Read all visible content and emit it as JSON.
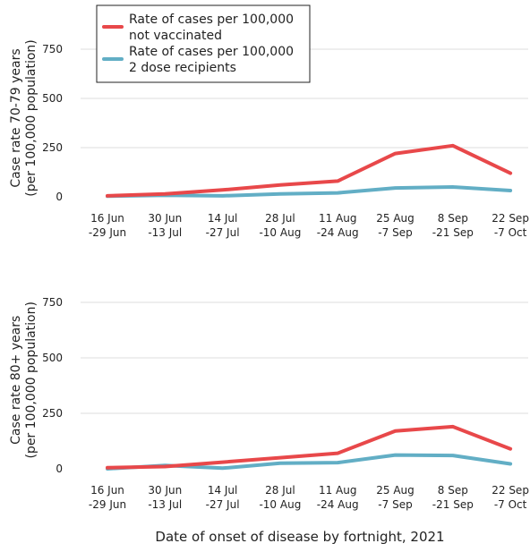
{
  "xlabel": "Date of onset of disease by fortnight, 2021",
  "legend": {
    "series": [
      {
        "label_line1": "Rate of cases per 100,000",
        "label_line2": "not vaccinated",
        "color": "#e8484a"
      },
      {
        "label_line1": "Rate of cases per 100,000",
        "label_line2": "2 dose recipients",
        "color": "#62aec5"
      }
    ]
  },
  "chart_data": [
    {
      "type": "line",
      "categories": [
        [
          "16 Jun",
          "-29 Jun"
        ],
        [
          "30 Jun",
          "-13 Jul"
        ],
        [
          "14 Jul",
          "-27 Jul"
        ],
        [
          "28 Jul",
          "-10 Aug"
        ],
        [
          "11 Aug",
          "-24 Aug"
        ],
        [
          "25 Aug",
          "-7 Sep"
        ],
        [
          "8 Sep",
          "-21 Sep"
        ],
        [
          "22 Sep",
          "-7 Oct"
        ]
      ],
      "ylabel_line1": "Case rate 70-79 years",
      "ylabel_line2": "(per 100,000 population)",
      "ylim": [
        0,
        850
      ],
      "yticks": [
        0,
        250,
        500,
        750
      ],
      "grid": true,
      "series": [
        {
          "name": "Rate of cases per 100,000 not vaccinated",
          "color": "#e8484a",
          "values": [
            5,
            15,
            35,
            60,
            80,
            220,
            260,
            120
          ]
        },
        {
          "name": "Rate of cases per 100,000 2 dose recipients",
          "color": "#62aec5",
          "values": [
            3,
            8,
            5,
            15,
            20,
            45,
            50,
            32
          ]
        }
      ]
    },
    {
      "type": "line",
      "categories": [
        [
          "16 Jun",
          "-29 Jun"
        ],
        [
          "30 Jun",
          "-13 Jul"
        ],
        [
          "14 Jul",
          "-27 Jul"
        ],
        [
          "28 Jul",
          "-10 Aug"
        ],
        [
          "11 Aug",
          "-24 Aug"
        ],
        [
          "25 Aug",
          "-7 Sep"
        ],
        [
          "8 Sep",
          "-21 Sep"
        ],
        [
          "22 Sep",
          "-7 Oct"
        ]
      ],
      "ylabel_line1": "Case rate 80+ years",
      "ylabel_line2": "(per 100,000 population)",
      "ylim": [
        0,
        850
      ],
      "yticks": [
        0,
        250,
        500,
        750
      ],
      "grid": true,
      "series": [
        {
          "name": "Rate of cases per 100,000 not vaccinated",
          "color": "#e8484a",
          "values": [
            5,
            10,
            30,
            50,
            70,
            170,
            190,
            90
          ]
        },
        {
          "name": "Rate of cases per 100,000 2 dose recipients",
          "color": "#62aec5",
          "values": [
            0,
            15,
            3,
            25,
            28,
            62,
            60,
            22
          ]
        }
      ]
    }
  ]
}
